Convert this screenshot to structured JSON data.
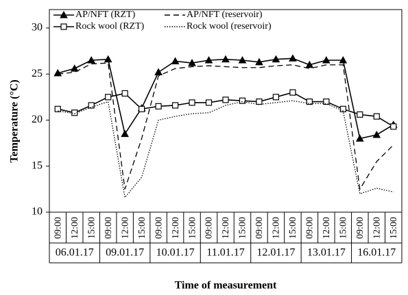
{
  "chart_data": {
    "type": "line",
    "x_label": "Time of measurement",
    "y_label": "Temperature (°C)",
    "categories": [
      "09:00",
      "12:00",
      "15:00",
      "09:00",
      "12:00",
      "15:00",
      "09:00",
      "12:00",
      "15:00",
      "09:00",
      "12:00",
      "15:00",
      "09:00",
      "12:00",
      "15:00",
      "09:00",
      "12:00",
      "15:00",
      "09:00",
      "12:00",
      "15:00"
    ],
    "category_groups": [
      "06.01.17",
      "09.01.17",
      "10.01.17",
      "11.01.17",
      "12.01.17",
      "13.01.17",
      "16.01.17"
    ],
    "ylim": [
      10,
      32
    ],
    "yticks": [
      10,
      15,
      20,
      25,
      30
    ],
    "grid": false,
    "legend": "top-left",
    "series": [
      {
        "name": "AP/NFT (RZT)",
        "color": "#000000",
        "dash": "solid",
        "marker": "triangle",
        "values": [
          25.1,
          25.6,
          26.5,
          26.6,
          18.5,
          21.3,
          25.2,
          26.4,
          26.2,
          26.5,
          26.6,
          26.5,
          26.3,
          26.6,
          26.7,
          26.0,
          26.5,
          26.5,
          18.0,
          18.4,
          19.5
        ]
      },
      {
        "name": "AP/NFT (reservoir)",
        "color": "#000000",
        "dash": "dashed",
        "values": [
          25.0,
          25.2,
          26.1,
          26.2,
          12.5,
          18.0,
          24.8,
          25.6,
          25.8,
          25.9,
          25.8,
          25.7,
          25.7,
          25.9,
          26.0,
          25.6,
          26.0,
          26.0,
          12.5,
          15.5,
          17.3
        ]
      },
      {
        "name": "Rock wool (RZT)",
        "color": "#000000",
        "dash": "solid",
        "marker": "square",
        "values": [
          21.2,
          20.8,
          21.6,
          22.5,
          22.9,
          21.2,
          21.5,
          21.6,
          21.9,
          21.9,
          22.2,
          22.1,
          22.0,
          22.5,
          23.0,
          22.0,
          22.0,
          21.2,
          20.6,
          20.4,
          19.3
        ]
      },
      {
        "name": "Rock wool (reservoir)",
        "color": "#000000",
        "dash": "dotted",
        "values": [
          21.0,
          20.7,
          21.4,
          22.0,
          11.6,
          13.8,
          20.0,
          20.4,
          20.7,
          20.8,
          21.6,
          22.0,
          21.7,
          21.9,
          22.1,
          21.8,
          21.8,
          21.0,
          12.0,
          12.6,
          12.2
        ]
      }
    ]
  }
}
